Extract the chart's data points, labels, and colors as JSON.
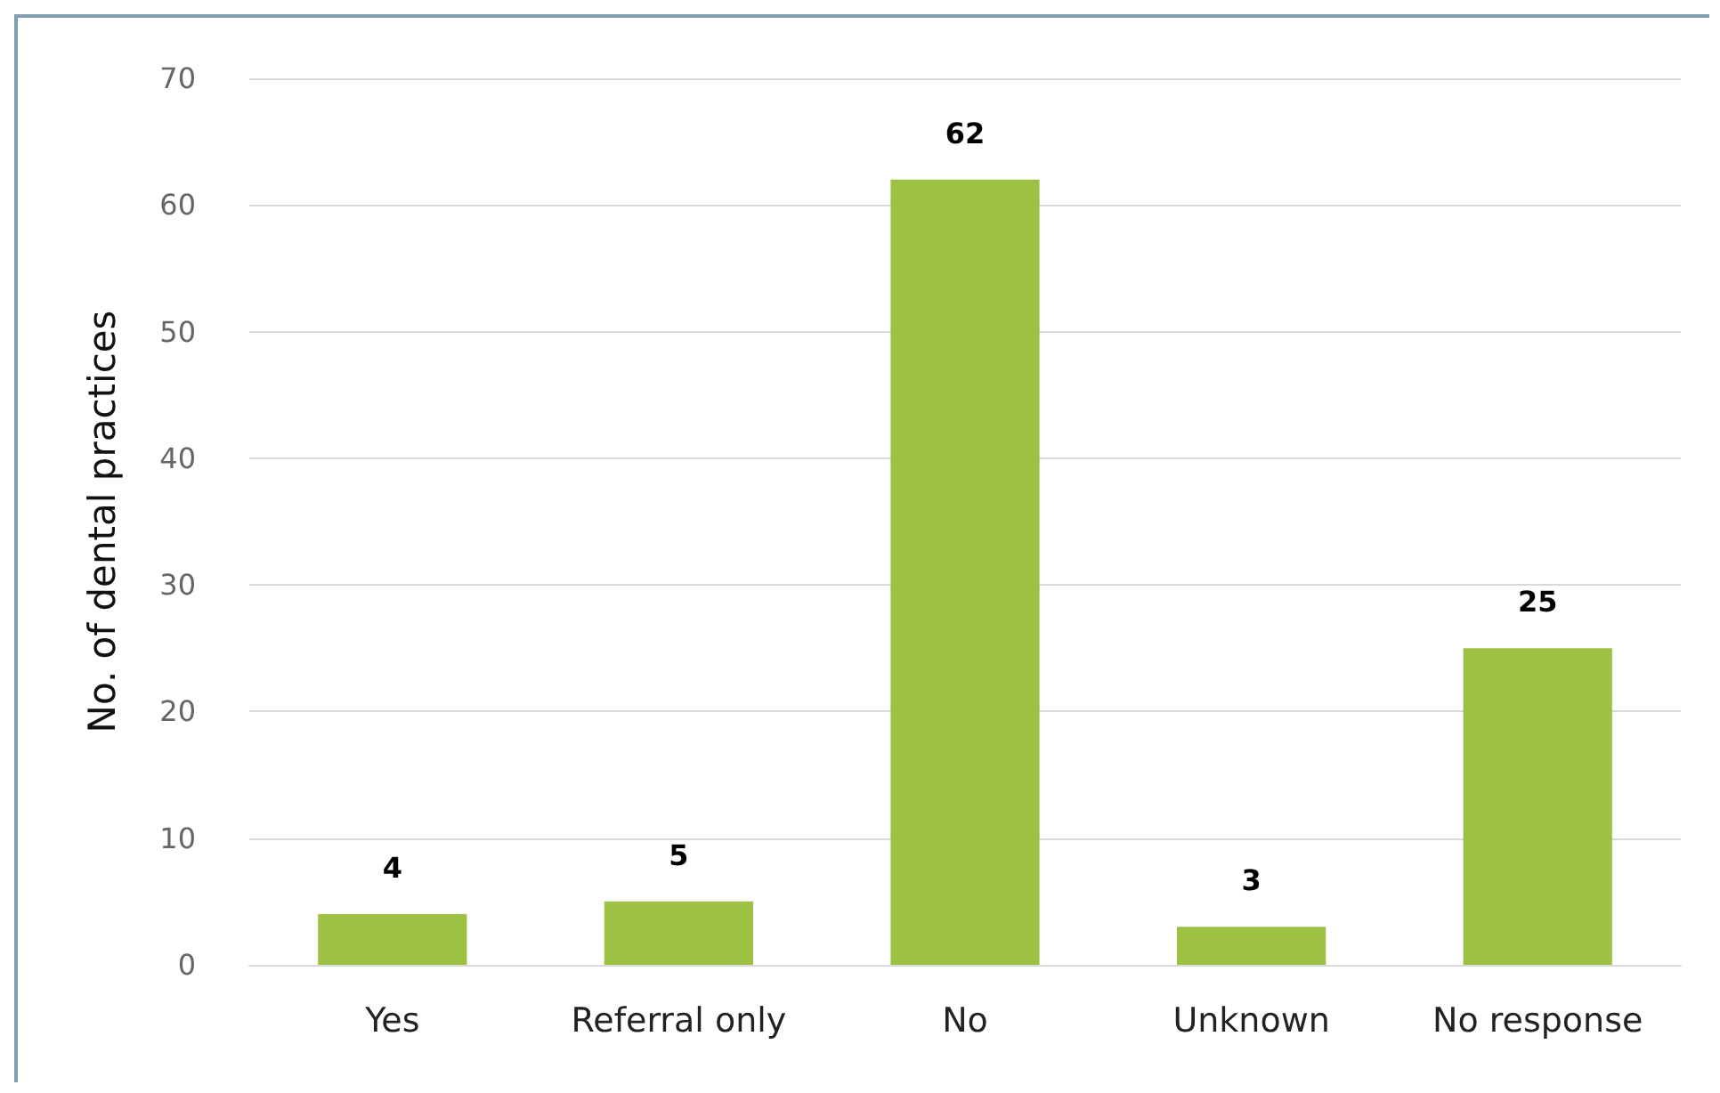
{
  "chart_data": {
    "type": "bar",
    "ylabel": "No. of dental practices",
    "categories": [
      "Yes",
      "Referral only",
      "No",
      "Unknown",
      "No response"
    ],
    "values": [
      4,
      5,
      62,
      3,
      25
    ],
    "color": "#9dc243",
    "ylim": [
      0,
      70
    ],
    "yticks": [
      0,
      10,
      20,
      30,
      40,
      50,
      60,
      70
    ],
    "grid": "y",
    "data_labels": true
  }
}
